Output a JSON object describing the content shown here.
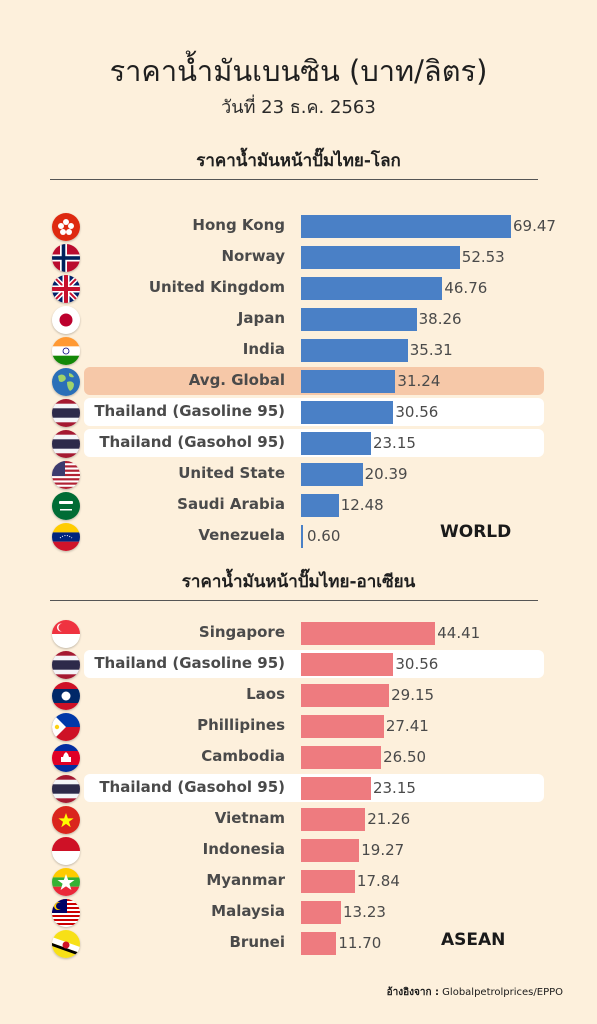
{
  "title": "ราคาน้ำมันเบนซิน (บาท/ลิตร)",
  "subtitle": "วันที่ 23 ธ.ค. 2563",
  "source_label": "อ้างอิงจาก :",
  "source_text": "Globalpetrolprices/EPPO",
  "colors": {
    "world_bar": "#4a80c6",
    "asean_bar": "#ee7b7f",
    "avg_highlight": "#f6c8a8",
    "thai_highlight": "#ffffff"
  },
  "chart_data": [
    {
      "type": "bar",
      "title": "ราคาน้ำมันหน้าปั๊มไทย-โลก",
      "tag": "WORLD",
      "orientation": "horizontal",
      "categories": [
        "Hong Kong",
        "Norway",
        "United Kingdom",
        "Japan",
        "India",
        "Avg. Global",
        "Thailand (Gasoline 95)",
        "Thailand (Gasohol 95)",
        "United State",
        "Saudi Arabia",
        "Venezuela"
      ],
      "values": [
        69.47,
        52.53,
        46.76,
        38.26,
        35.31,
        31.24,
        30.56,
        23.15,
        20.39,
        12.48,
        0.6
      ],
      "value_labels": [
        "69.47",
        "52.53",
        "46.76",
        "38.26",
        "35.31",
        "31.24",
        "30.56",
        "23.15",
        "20.39",
        "12.48",
        "0.60"
      ],
      "flags": [
        "hong-kong-flag-icon",
        "norway-flag-icon",
        "uk-flag-icon",
        "japan-flag-icon",
        "india-flag-icon",
        "globe-icon",
        "thailand-flag-icon",
        "thailand-flag-icon",
        "usa-flag-icon",
        "saudi-flag-icon",
        "venezuela-flag-icon"
      ],
      "highlights": [
        "none",
        "none",
        "none",
        "none",
        "none",
        "avg",
        "thai",
        "thai",
        "none",
        "none",
        "none"
      ]
    },
    {
      "type": "bar",
      "title": "ราคาน้ำมันหน้าปั๊มไทย-อาเซียน",
      "tag": "ASEAN",
      "orientation": "horizontal",
      "categories": [
        "Singapore",
        "Thailand (Gasoline 95)",
        "Laos",
        "Phillipines",
        "Cambodia",
        "Thailand (Gasohol 95)",
        "Vietnam",
        "Indonesia",
        "Myanmar",
        "Malaysia",
        "Brunei"
      ],
      "values": [
        44.41,
        30.56,
        29.15,
        27.41,
        26.5,
        23.15,
        21.26,
        19.27,
        17.84,
        13.23,
        11.7
      ],
      "value_labels": [
        "44.41",
        "30.56",
        "29.15",
        "27.41",
        "26.50",
        "23.15",
        "21.26",
        "19.27",
        "17.84",
        "13.23",
        "11.70"
      ],
      "flags": [
        "singapore-flag-icon",
        "thailand-flag-icon",
        "laos-flag-icon",
        "philippines-flag-icon",
        "cambodia-flag-icon",
        "thailand-flag-icon",
        "vietnam-flag-icon",
        "indonesia-flag-icon",
        "myanmar-flag-icon",
        "malaysia-flag-icon",
        "brunei-flag-icon"
      ],
      "highlights": [
        "none",
        "thai",
        "none",
        "none",
        "none",
        "thai",
        "none",
        "none",
        "none",
        "none",
        "none"
      ]
    }
  ]
}
